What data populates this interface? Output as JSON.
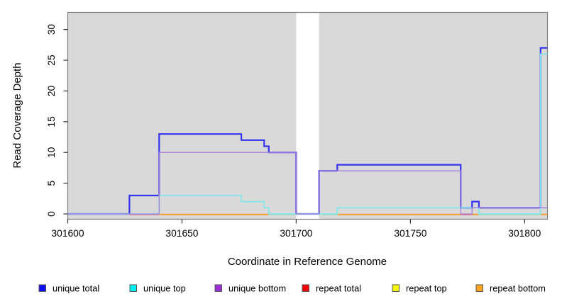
{
  "figure": {
    "title": "",
    "x_axis_title": "Coordinate in Reference Genome",
    "y_axis_title": "Read Coverage Depth"
  },
  "chart_data": {
    "type": "line",
    "line_style": "step",
    "title": "",
    "xlabel": "Coordinate in Reference Genome",
    "ylabel": "Read Coverage Depth",
    "xlim": [
      301600,
      301810
    ],
    "ylim": [
      0,
      32.5
    ],
    "x_ticks": [
      301600,
      301650,
      301700,
      301750,
      301800
    ],
    "y_ticks": [
      0,
      5,
      10,
      15,
      20,
      25,
      30
    ],
    "grid": false,
    "legend_position": "bottom",
    "plot_background": {
      "shading_color": "#d9d9d9",
      "shaded_regions": [
        [
          301600,
          301700
        ],
        [
          301710,
          301810
        ]
      ],
      "white_gap": [
        301700,
        301710
      ]
    },
    "series": [
      {
        "name": "unique total",
        "color": "#3434ee",
        "line_width": 2.2,
        "points": [
          [
            301600,
            0
          ],
          [
            301627,
            0
          ],
          [
            301627,
            3
          ],
          [
            301640,
            3
          ],
          [
            301640,
            13
          ],
          [
            301676,
            13
          ],
          [
            301676,
            12
          ],
          [
            301686,
            12
          ],
          [
            301686,
            11
          ],
          [
            301688,
            11
          ],
          [
            301688,
            10
          ],
          [
            301700,
            10
          ],
          [
            301700,
            0
          ],
          [
            301710,
            0
          ],
          [
            301710,
            7
          ],
          [
            301718,
            7
          ],
          [
            301718,
            8
          ],
          [
            301772,
            8
          ],
          [
            301772,
            1
          ],
          [
            301777,
            1
          ],
          [
            301777,
            2
          ],
          [
            301780,
            2
          ],
          [
            301780,
            1
          ],
          [
            301807,
            1
          ],
          [
            301807,
            27
          ],
          [
            301810,
            27
          ]
        ]
      },
      {
        "name": "unique top",
        "color": "#7fe6ea",
        "line_width": 1.7,
        "points": [
          [
            301600,
            0
          ],
          [
            301640,
            0
          ],
          [
            301640,
            3
          ],
          [
            301676,
            3
          ],
          [
            301676,
            2
          ],
          [
            301686,
            2
          ],
          [
            301686,
            1
          ],
          [
            301688,
            1
          ],
          [
            301688,
            0
          ],
          [
            301718,
            0
          ],
          [
            301718,
            1
          ],
          [
            301780,
            1
          ],
          [
            301780,
            0
          ],
          [
            301807,
            0
          ],
          [
            301807,
            26
          ],
          [
            301810,
            26
          ]
        ]
      },
      {
        "name": "unique bottom",
        "color": "#a67fd8",
        "line_width": 1.3,
        "points": [
          [
            301600,
            0
          ],
          [
            301640,
            0
          ],
          [
            301640,
            10
          ],
          [
            301700,
            10
          ],
          [
            301700,
            0
          ],
          [
            301710,
            0
          ],
          [
            301710,
            7
          ],
          [
            301772,
            7
          ],
          [
            301772,
            0
          ],
          [
            301777,
            0
          ],
          [
            301777,
            1
          ],
          [
            301810,
            1
          ]
        ]
      },
      {
        "name": "repeat total",
        "color": "#e8506e",
        "line_width": 1.7,
        "points": [
          [
            301600,
            0
          ],
          [
            301810,
            0
          ]
        ],
        "visible_segments": [
          [
            301627,
            301640
          ],
          [
            301772,
            301777
          ]
        ]
      },
      {
        "name": "repeat top",
        "color": "#f5f500",
        "line_width": 1.7,
        "points": [
          [
            301600,
            0
          ],
          [
            301810,
            0
          ]
        ],
        "visible_segments": []
      },
      {
        "name": "repeat bottom",
        "color": "#ff9d26",
        "line_width": 1.9,
        "points": [
          [
            301600,
            0
          ],
          [
            301810,
            0
          ]
        ],
        "visible_segments": [
          [
            301640,
            301688
          ],
          [
            301718,
            301772
          ],
          [
            301777,
            301780
          ],
          [
            301807,
            301810
          ]
        ]
      }
    ],
    "baseline_blend_segments": [
      {
        "color": "#a9d6a9",
        "from": 301688,
        "to": 301700
      },
      {
        "color": "#a9d6a9",
        "from": 301710,
        "to": 301718
      },
      {
        "color": "#a9d6a9",
        "from": 301780,
        "to": 301807
      }
    ]
  },
  "legend": {
    "items": [
      {
        "label": "unique total",
        "swatch_color": "#0d0df5"
      },
      {
        "label": "unique top",
        "swatch_color": "#00f0f0"
      },
      {
        "label": "unique bottom",
        "swatch_color": "#9b2fd6"
      },
      {
        "label": "repeat total",
        "swatch_color": "#f50000"
      },
      {
        "label": "repeat top",
        "swatch_color": "#f5f500"
      },
      {
        "label": "repeat bottom",
        "swatch_color": "#ffa51f"
      }
    ]
  },
  "style": {
    "box_color": "#7d7d7d",
    "tick_color": "#333333",
    "label_color": "#000000",
    "legend_swatch_border": "#555555"
  }
}
